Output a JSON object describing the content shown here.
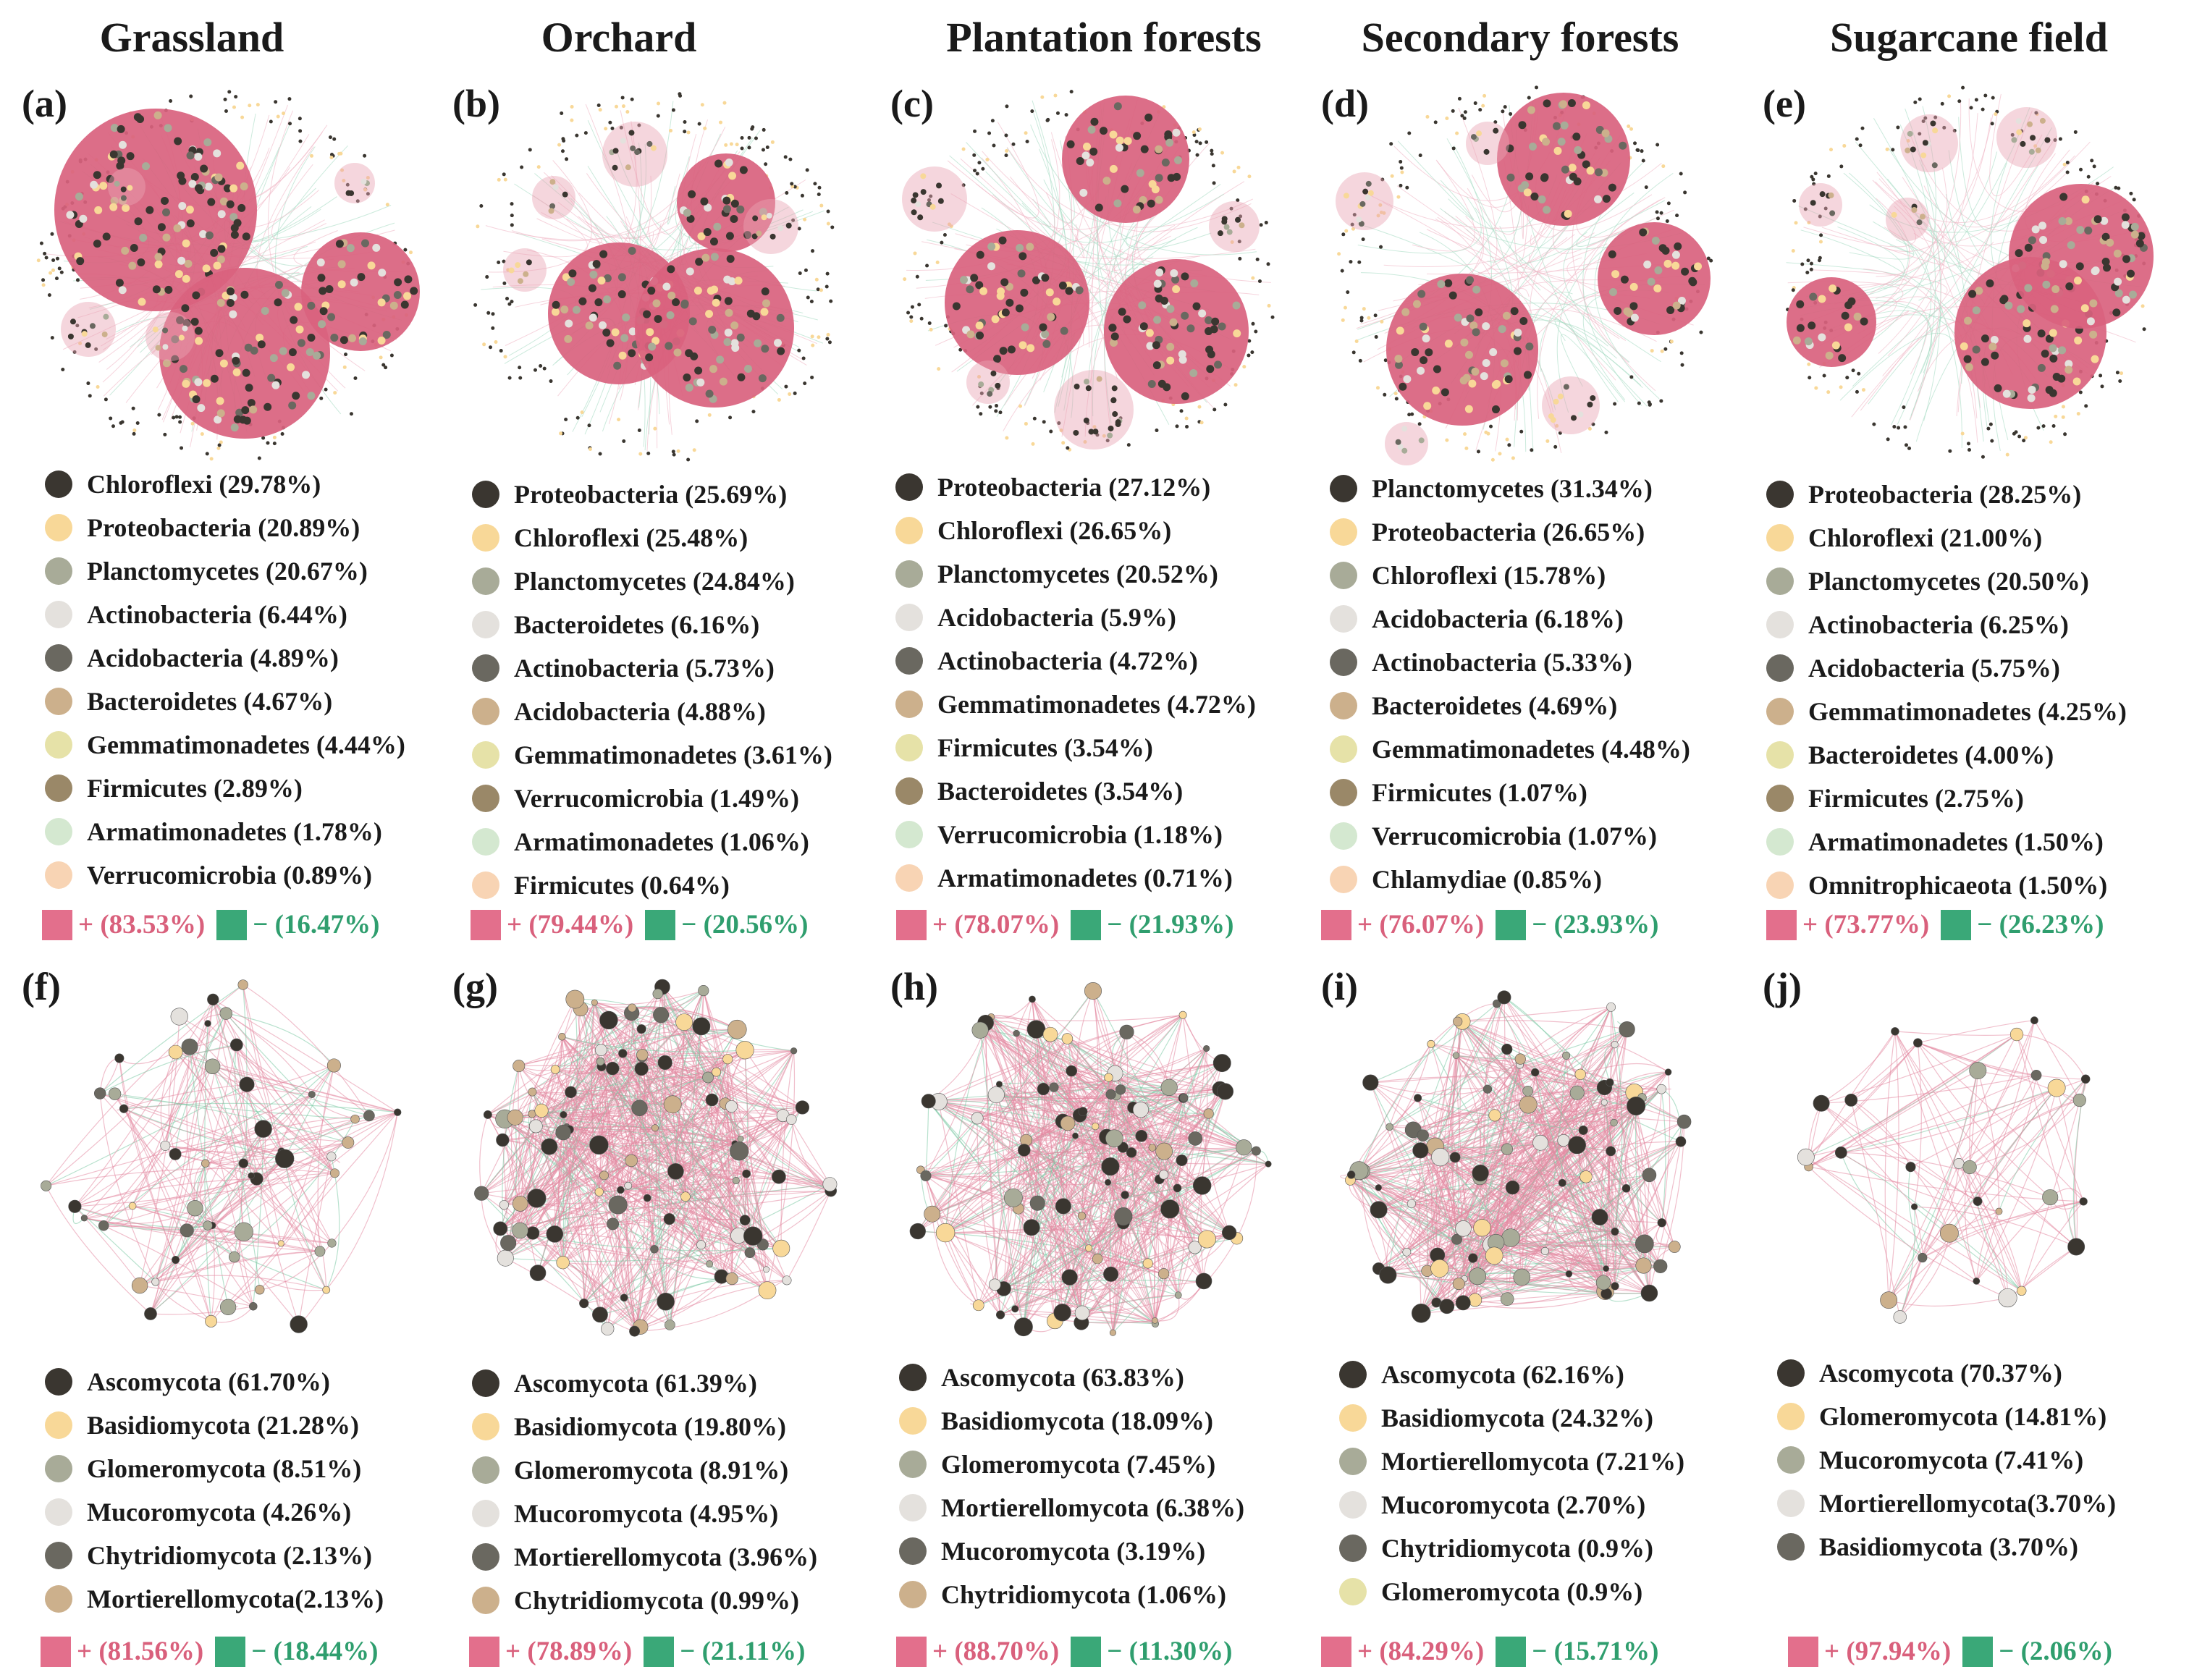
{
  "colors": {
    "positive": "#e36f8c",
    "negative": "#3aa878"
  },
  "columns": [
    "Grassland",
    "Orchard",
    "Plantation forests",
    "Secondary forests",
    "Sugarcane field"
  ],
  "bacteria_panels": [
    {
      "label": "(a)",
      "legend": [
        {
          "name": "Chloroflexi (29.78%)",
          "color": "#3a3630"
        },
        {
          "name": "Proteobacteria (20.89%)",
          "color": "#f8d898"
        },
        {
          "name": "Planctomycetes (20.67%)",
          "color": "#a8ab98"
        },
        {
          "name": "Actinobacteria (6.44%)",
          "color": "#e4e1dd"
        },
        {
          "name": "Acidobacteria (4.89%)",
          "color": "#6a6860"
        },
        {
          "name": "Bacteroidetes (4.67%)",
          "color": "#ccb08c"
        },
        {
          "name": "Gemmatimonadetes (4.44%)",
          "color": "#e6e2a8"
        },
        {
          "name": "Firmicutes (2.89%)",
          "color": "#9a8868"
        },
        {
          "name": "Armatimonadetes (1.78%)",
          "color": "#d4e8d0"
        },
        {
          "name": "Verrucomicrobia (0.89%)",
          "color": "#f8d4b4"
        }
      ],
      "positive": "+ (83.53%)",
      "negative": "− (16.47%)"
    },
    {
      "label": "(b)",
      "legend": [
        {
          "name": "Proteobacteria (25.69%)",
          "color": "#3a3630"
        },
        {
          "name": "Chloroflexi (25.48%)",
          "color": "#f8d898"
        },
        {
          "name": "Planctomycetes (24.84%)",
          "color": "#a8ab98"
        },
        {
          "name": "Bacteroidetes (6.16%)",
          "color": "#e4e1dd"
        },
        {
          "name": "Actinobacteria (5.73%)",
          "color": "#6a6860"
        },
        {
          "name": "Acidobacteria (4.88%)",
          "color": "#ccb08c"
        },
        {
          "name": "Gemmatimonadetes (3.61%)",
          "color": "#e6e2a8"
        },
        {
          "name": "Verrucomicrobia (1.49%)",
          "color": "#9a8868"
        },
        {
          "name": "Armatimonadetes (1.06%)",
          "color": "#d4e8d0"
        },
        {
          "name": "Firmicutes (0.64%)",
          "color": "#f8d4b4"
        }
      ],
      "positive": "+ (79.44%)",
      "negative": "− (20.56%)"
    },
    {
      "label": "(c)",
      "legend": [
        {
          "name": "Proteobacteria (27.12%)",
          "color": "#3a3630"
        },
        {
          "name": "Chloroflexi (26.65%)",
          "color": "#f8d898"
        },
        {
          "name": "Planctomycetes (20.52%)",
          "color": "#a8ab98"
        },
        {
          "name": "Acidobacteria (5.9%)",
          "color": "#e4e1dd"
        },
        {
          "name": "Actinobacteria (4.72%)",
          "color": "#6a6860"
        },
        {
          "name": "Gemmatimonadetes (4.72%)",
          "color": "#ccb08c"
        },
        {
          "name": "Firmicutes (3.54%)",
          "color": "#e6e2a8"
        },
        {
          "name": "Bacteroidetes (3.54%)",
          "color": "#9a8868"
        },
        {
          "name": "Verrucomicrobia (1.18%)",
          "color": "#d4e8d0"
        },
        {
          "name": "Armatimonadetes (0.71%)",
          "color": "#f8d4b4"
        }
      ],
      "positive": "+ (78.07%)",
      "negative": "− (21.93%)"
    },
    {
      "label": "(d)",
      "legend": [
        {
          "name": "Planctomycetes (31.34%)",
          "color": "#3a3630"
        },
        {
          "name": "Proteobacteria (26.65%)",
          "color": "#f8d898"
        },
        {
          "name": "Chloroflexi (15.78%)",
          "color": "#a8ab98"
        },
        {
          "name": "Acidobacteria (6.18%)",
          "color": "#e4e1dd"
        },
        {
          "name": "Actinobacteria (5.33%)",
          "color": "#6a6860"
        },
        {
          "name": "Bacteroidetes (4.69%)",
          "color": "#ccb08c"
        },
        {
          "name": "Gemmatimonadetes (4.48%)",
          "color": "#e6e2a8"
        },
        {
          "name": "Firmicutes (1.07%)",
          "color": "#9a8868"
        },
        {
          "name": "Verrucomicrobia (1.07%)",
          "color": "#d4e8d0"
        },
        {
          "name": "Chlamydiae (0.85%)",
          "color": "#f8d4b4"
        }
      ],
      "positive": "+ (76.07%)",
      "negative": "− (23.93%)"
    },
    {
      "label": "(e)",
      "legend": [
        {
          "name": "Proteobacteria (28.25%)",
          "color": "#3a3630"
        },
        {
          "name": "Chloroflexi (21.00%)",
          "color": "#f8d898"
        },
        {
          "name": "Planctomycetes (20.50%)",
          "color": "#a8ab98"
        },
        {
          "name": "Actinobacteria (6.25%)",
          "color": "#e4e1dd"
        },
        {
          "name": "Acidobacteria (5.75%)",
          "color": "#6a6860"
        },
        {
          "name": "Gemmatimonadetes (4.25%)",
          "color": "#ccb08c"
        },
        {
          "name": "Bacteroidetes (4.00%)",
          "color": "#e6e2a8"
        },
        {
          "name": "Firmicutes (2.75%)",
          "color": "#9a8868"
        },
        {
          "name": "Armatimonadetes (1.50%)",
          "color": "#d4e8d0"
        },
        {
          "name": "Omnitrophicaeota (1.50%)",
          "color": "#f8d4b4"
        }
      ],
      "positive": "+ (73.77%)",
      "negative": "− (26.23%)"
    }
  ],
  "fungi_panels": [
    {
      "label": "(f)",
      "legend": [
        {
          "name": "Ascomycota (61.70%)",
          "color": "#3a3630"
        },
        {
          "name": "Basidiomycota (21.28%)",
          "color": "#f8d898"
        },
        {
          "name": "Glomeromycota (8.51%)",
          "color": "#a8ab98"
        },
        {
          "name": "Mucoromycota (4.26%)",
          "color": "#e4e1dd"
        },
        {
          "name": "Chytridiomycota (2.13%)",
          "color": "#6a6860"
        },
        {
          "name": "Mortierellomycota(2.13%)",
          "color": "#ccb08c"
        }
      ],
      "positive": "+ (81.56%)",
      "negative": "− (18.44%)"
    },
    {
      "label": "(g)",
      "legend": [
        {
          "name": "Ascomycota (61.39%)",
          "color": "#3a3630"
        },
        {
          "name": "Basidiomycota (19.80%)",
          "color": "#f8d898"
        },
        {
          "name": "Glomeromycota (8.91%)",
          "color": "#a8ab98"
        },
        {
          "name": "Mucoromycota (4.95%)",
          "color": "#e4e1dd"
        },
        {
          "name": "Mortierellomycota (3.96%)",
          "color": "#6a6860"
        },
        {
          "name": "Chytridiomycota (0.99%)",
          "color": "#ccb08c"
        }
      ],
      "positive": "+ (78.89%)",
      "negative": "− (21.11%)"
    },
    {
      "label": "(h)",
      "legend": [
        {
          "name": "Ascomycota (63.83%)",
          "color": "#3a3630"
        },
        {
          "name": "Basidiomycota (18.09%)",
          "color": "#f8d898"
        },
        {
          "name": "Glomeromycota (7.45%)",
          "color": "#a8ab98"
        },
        {
          "name": "Mortierellomycota (6.38%)",
          "color": "#e4e1dd"
        },
        {
          "name": "Mucoromycota (3.19%)",
          "color": "#6a6860"
        },
        {
          "name": "Chytridiomycota (1.06%)",
          "color": "#ccb08c"
        }
      ],
      "positive": "+ (88.70%)",
      "negative": "− (11.30%)"
    },
    {
      "label": "(i)",
      "legend": [
        {
          "name": "Ascomycota (62.16%)",
          "color": "#3a3630"
        },
        {
          "name": "Basidiomycota (24.32%)",
          "color": "#f8d898"
        },
        {
          "name": "Mortierellomycota (7.21%)",
          "color": "#a8ab98"
        },
        {
          "name": "Mucoromycota (2.70%)",
          "color": "#e4e1dd"
        },
        {
          "name": "Chytridiomycota (0.9%)",
          "color": "#6a6860"
        },
        {
          "name": "Glomeromycota (0.9%)",
          "color": "#e6e2a8"
        }
      ],
      "positive": "+ (84.29%)",
      "negative": "− (15.71%)"
    },
    {
      "label": "(j)",
      "legend": [
        {
          "name": "Ascomycota (70.37%)",
          "color": "#3a3630"
        },
        {
          "name": "Glomeromycota (14.81%)",
          "color": "#f8d898"
        },
        {
          "name": "Mucoromycota (7.41%)",
          "color": "#a8ab98"
        },
        {
          "name": "Mortierellomycota(3.70%)",
          "color": "#e4e1dd"
        },
        {
          "name": "Basidiomycota (3.70%)",
          "color": "#6a6860"
        }
      ],
      "positive": "+ (97.94%)",
      "negative": "− (2.06%)"
    }
  ]
}
